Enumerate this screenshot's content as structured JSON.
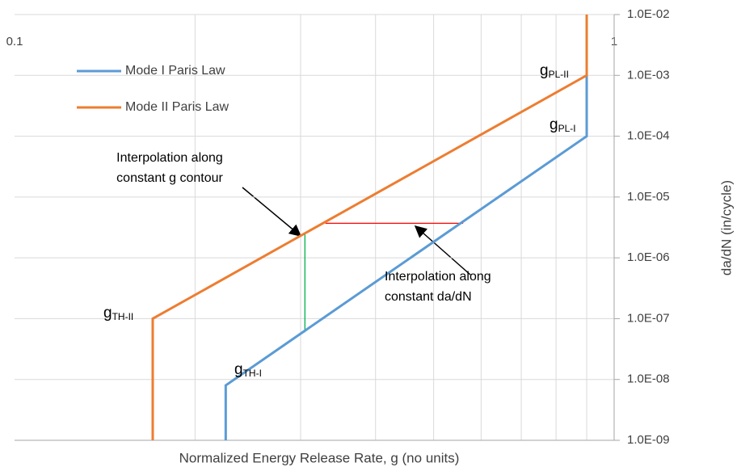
{
  "chart_data": {
    "type": "line",
    "xlabel": "Normalized Energy Release Rate, g (no units)",
    "ylabel": "da/dN (in/cycle)",
    "xscale": "log",
    "yscale": "log",
    "grid": true,
    "legend": "upper left",
    "xlim": [
      0.1,
      1
    ],
    "xticks": [
      0.1,
      1
    ],
    "x_minor_grid": [
      0.2,
      0.3,
      0.4,
      0.5,
      0.6,
      0.7,
      0.8,
      0.9
    ],
    "ylim": [
      1e-09,
      0.01
    ],
    "yticks": [
      {
        "value": 1e-09,
        "label": "1.0E-09"
      },
      {
        "value": 1e-08,
        "label": "1.0E-08"
      },
      {
        "value": 1e-07,
        "label": "1.0E-07"
      },
      {
        "value": 1e-06,
        "label": "1.0E-06"
      },
      {
        "value": 1e-05,
        "label": "1.0E-05"
      },
      {
        "value": 0.0001,
        "label": "1.0E-04"
      },
      {
        "value": 0.001,
        "label": "1.0E-03"
      },
      {
        "value": 0.01,
        "label": "1.0E-02"
      }
    ],
    "series": [
      {
        "name": "Mode I Paris Law",
        "color": "#5b9bd5",
        "x": [
          0.225,
          0.225,
          0.9,
          0.9
        ],
        "values": [
          1e-09,
          8e-09,
          0.0001,
          0.001
        ]
      },
      {
        "name": "Mode II Paris Law",
        "color": "#ed7d31",
        "x": [
          0.17,
          0.17,
          0.9,
          0.9
        ],
        "values": [
          1e-09,
          1e-07,
          0.001,
          0.01
        ]
      }
    ],
    "guides": [
      {
        "color": "#ff0000",
        "x": [
          0.33,
          0.56
        ],
        "values": [
          3.7e-06,
          3.7e-06
        ]
      },
      {
        "color": "#00b050",
        "x": [
          0.305,
          0.305
        ],
        "values": [
          2.5e-06,
          6e-08
        ]
      }
    ],
    "labels": [
      {
        "text": "g",
        "sub": "PL-II"
      },
      {
        "text": "g",
        "sub": "PL-I"
      },
      {
        "text": "g",
        "sub": "TH-II"
      },
      {
        "text": "g",
        "sub": "TH-I"
      }
    ],
    "annotations": [
      {
        "lines": [
          "Interpolation along",
          "constant g contour"
        ]
      },
      {
        "lines": [
          "Interpolation along",
          "constant da/dN"
        ]
      }
    ]
  }
}
